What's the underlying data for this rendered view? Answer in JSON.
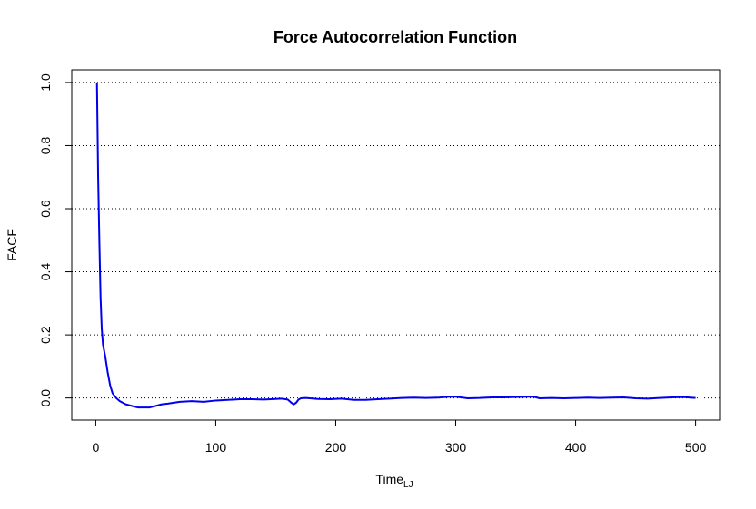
{
  "chart_data": {
    "type": "line",
    "title": "Force Autocorrelation Function",
    "xlabel": "Time",
    "xlabel_subscript": "LJ",
    "ylabel": "FACF",
    "xlim": [
      -20,
      520
    ],
    "ylim": [
      -0.07,
      1.04
    ],
    "x_ticks": [
      0,
      100,
      200,
      300,
      400,
      500
    ],
    "x_tick_labels": [
      "0",
      "100",
      "200",
      "300",
      "400",
      "500"
    ],
    "y_ticks": [
      0.0,
      0.2,
      0.4,
      0.6,
      0.8,
      1.0
    ],
    "y_tick_labels": [
      "0.0",
      "0.2",
      "0.4",
      "0.6",
      "0.8",
      "1.0"
    ],
    "grid": "horizontal dotted at y ticks",
    "series": [
      {
        "color": "#0000ee",
        "x": [
          1,
          2,
          3,
          4,
          5,
          6,
          8,
          10,
          12,
          14,
          17,
          20,
          25,
          30,
          35,
          40,
          45,
          50,
          55,
          60,
          70,
          80,
          90,
          100,
          110,
          120,
          130,
          140,
          150,
          155,
          160,
          163,
          165,
          167,
          169,
          171,
          175,
          185,
          195,
          205,
          215,
          225,
          235,
          245,
          255,
          265,
          275,
          285,
          295,
          300,
          310,
          320,
          330,
          340,
          350,
          360,
          365,
          370,
          380,
          390,
          400,
          410,
          420,
          430,
          440,
          450,
          460,
          470,
          480,
          490,
          500
        ],
        "y": [
          1.0,
          0.7,
          0.5,
          0.32,
          0.22,
          0.17,
          0.13,
          0.08,
          0.04,
          0.015,
          0.0,
          -0.01,
          -0.02,
          -0.025,
          -0.03,
          -0.03,
          -0.03,
          -0.025,
          -0.02,
          -0.018,
          -0.012,
          -0.01,
          -0.012,
          -0.008,
          -0.006,
          -0.004,
          -0.004,
          -0.005,
          -0.003,
          -0.002,
          -0.005,
          -0.015,
          -0.02,
          -0.015,
          -0.005,
          -0.001,
          0.0,
          -0.003,
          -0.004,
          -0.002,
          -0.006,
          -0.006,
          -0.004,
          -0.002,
          0.0,
          0.001,
          0.0,
          0.001,
          0.004,
          0.004,
          -0.001,
          0.0,
          0.002,
          0.002,
          0.003,
          0.004,
          0.004,
          -0.001,
          0.0,
          -0.001,
          0.0,
          0.001,
          0.0,
          0.001,
          0.002,
          -0.001,
          -0.002,
          0.0,
          0.002,
          0.003,
          0.0
        ]
      }
    ]
  }
}
